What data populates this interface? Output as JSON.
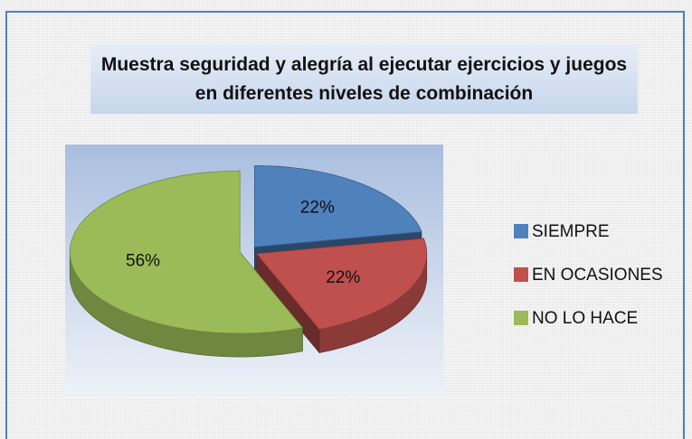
{
  "chart_data": {
    "type": "pie3d",
    "title": "Muestra seguridad y alegría al ejecutar ejercicios y juegos en  diferentes niveles de combinación",
    "categories": [
      "SIEMPRE",
      "EN OCASIONES",
      "NO LO HACE"
    ],
    "values": [
      22,
      22,
      56
    ],
    "value_labels": [
      "22%",
      "22%",
      "56%"
    ],
    "colors": [
      "#4f81bd",
      "#c0504d",
      "#9bbb59"
    ],
    "legend": "right"
  }
}
